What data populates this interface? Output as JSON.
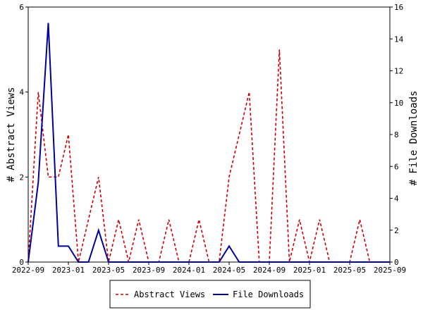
{
  "chart_data": {
    "type": "line",
    "x_ticks": [
      "2022-09",
      "2023-01",
      "2023-05",
      "2023-09",
      "2024-01",
      "2024-05",
      "2024-09",
      "2025-01",
      "2025-05",
      "2025-09"
    ],
    "x_range": [
      "2022-09",
      "2025-09"
    ],
    "x": [
      "2022-09",
      "2022-10",
      "2022-11",
      "2022-12",
      "2023-01",
      "2023-02",
      "2023-03",
      "2023-04",
      "2023-05",
      "2023-06",
      "2023-07",
      "2023-08",
      "2023-09",
      "2023-10",
      "2023-11",
      "2023-12",
      "2024-01",
      "2024-02",
      "2024-03",
      "2024-04",
      "2024-05",
      "2024-06",
      "2024-07",
      "2024-08",
      "2024-09",
      "2024-10",
      "2024-11",
      "2024-12",
      "2025-01",
      "2025-02",
      "2025-03",
      "2025-04",
      "2025-05",
      "2025-06",
      "2025-07",
      "2025-08",
      "2025-09"
    ],
    "y_left": {
      "label": "# Abstract Views",
      "range": [
        0,
        6
      ],
      "ticks": [
        0,
        2,
        4,
        6
      ]
    },
    "y_right": {
      "label": "# File Downloads",
      "range": [
        0,
        16
      ],
      "ticks": [
        0,
        2,
        4,
        6,
        8,
        10,
        12,
        14,
        16
      ]
    },
    "series": [
      {
        "name": "Abstract Views",
        "axis": "left",
        "color": "#cc0000",
        "style": "dashed",
        "values": [
          0,
          4,
          2,
          2,
          3,
          0,
          1,
          2,
          0,
          1,
          0,
          1,
          0,
          0,
          1,
          0,
          0,
          1,
          0,
          0,
          2,
          3,
          4,
          0,
          0,
          5,
          0,
          1,
          0,
          1,
          0,
          0,
          0,
          1,
          0,
          0,
          0
        ]
      },
      {
        "name": "File Downloads",
        "axis": "right",
        "color": "#00009a",
        "style": "solid",
        "values": [
          0,
          5,
          15,
          1,
          1,
          0,
          0,
          2,
          0,
          0,
          0,
          0,
          0,
          0,
          0,
          0,
          0,
          0,
          0,
          0,
          1,
          0,
          0,
          0,
          0,
          0,
          0,
          0,
          0,
          0,
          0,
          0,
          0,
          0,
          0,
          0,
          0
        ]
      }
    ],
    "legend_position": "bottom",
    "grid": false
  }
}
